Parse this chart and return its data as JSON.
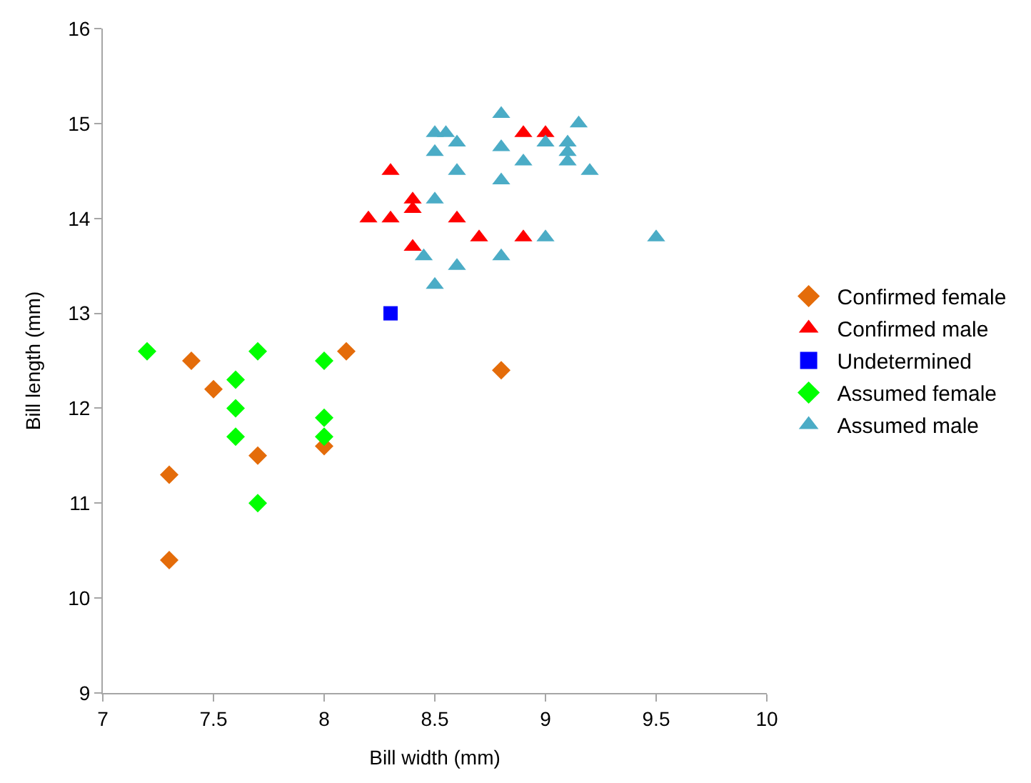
{
  "chart_data": {
    "type": "scatter",
    "xlabel": "Bill width (mm)",
    "ylabel": "Bill length (mm)",
    "xlim": [
      7,
      10
    ],
    "xticks": [
      7,
      7.5,
      8,
      8.5,
      9,
      9.5,
      10
    ],
    "ylim": [
      9,
      16
    ],
    "yticks": [
      9,
      10,
      11,
      12,
      13,
      14,
      15,
      16
    ],
    "grid": false,
    "legend": "right",
    "series": [
      {
        "name": "Confirmed female",
        "color": "#e46c0a",
        "marker": "diamond",
        "x": [
          7.3,
          7.3,
          7.4,
          7.5,
          7.7,
          8.0,
          8.1,
          8.8
        ],
        "values": [
          11.3,
          10.4,
          12.5,
          12.2,
          11.5,
          11.6,
          12.6,
          12.4
        ]
      },
      {
        "name": "Confirmed male",
        "color": "#ff0000",
        "marker": "triangle",
        "x": [
          8.2,
          8.3,
          8.3,
          8.4,
          8.4,
          8.4,
          8.6,
          8.7,
          8.9,
          9.0,
          8.9
        ],
        "values": [
          14.0,
          14.5,
          14.0,
          14.2,
          14.1,
          13.7,
          14.0,
          13.8,
          14.9,
          14.9,
          13.8
        ]
      },
      {
        "name": "Undetermined",
        "color": "#0000ff",
        "marker": "square",
        "x": [
          8.3
        ],
        "values": [
          13.0
        ]
      },
      {
        "name": "Assumed female",
        "color": "#00ff00",
        "marker": "diamond",
        "x": [
          7.2,
          7.6,
          7.6,
          7.6,
          7.7,
          7.7,
          8.0,
          8.0,
          8.0
        ],
        "values": [
          12.6,
          12.3,
          12.0,
          11.7,
          12.6,
          11.0,
          12.5,
          11.9,
          11.7
        ]
      },
      {
        "name": "Assumed male",
        "color": "#4bacc6",
        "marker": "triangle",
        "x": [
          8.5,
          8.55,
          8.6,
          8.5,
          8.6,
          8.5,
          8.45,
          8.5,
          8.6,
          8.8,
          8.8,
          8.8,
          8.8,
          8.9,
          9.0,
          9.0,
          9.1,
          9.1,
          9.1,
          9.15,
          9.2,
          9.5
        ],
        "values": [
          14.9,
          14.9,
          14.8,
          14.7,
          14.5,
          14.2,
          13.6,
          13.3,
          13.5,
          15.1,
          14.75,
          14.4,
          13.6,
          14.6,
          14.8,
          13.8,
          14.8,
          14.7,
          14.6,
          15.0,
          14.5,
          13.8
        ]
      }
    ]
  }
}
